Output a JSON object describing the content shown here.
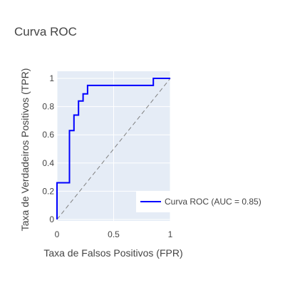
{
  "chart_data": {
    "type": "line",
    "title": "Curva ROC",
    "xlabel": "Taxa de Falsos Positivos (FPR)",
    "ylabel": "Taxa de Verdadeiros Positivos (TPR)",
    "xlim": [
      0,
      1
    ],
    "ylim": [
      0,
      1
    ],
    "xticks": [
      0,
      0.5,
      1
    ],
    "xtick_labels": [
      "0",
      "0.5",
      "1"
    ],
    "yticks": [
      0,
      0.2,
      0.4,
      0.6,
      0.8,
      1
    ],
    "ytick_labels": [
      "0",
      "0.2",
      "0.4",
      "0.6",
      "0.8",
      "1"
    ],
    "grid": true,
    "legend_position": "bottom-right",
    "series": [
      {
        "name": "Curva ROC (AUC = 0.85)",
        "line_shape": "step",
        "color": "#0000ff",
        "x": [
          0,
          0,
          0.11,
          0.11,
          0.15,
          0.15,
          0.19,
          0.19,
          0.23,
          0.23,
          0.27,
          0.27,
          0.85,
          0.85,
          1
        ],
        "y": [
          0,
          0.26,
          0.26,
          0.63,
          0.63,
          0.74,
          0.74,
          0.84,
          0.84,
          0.89,
          0.89,
          0.95,
          0.95,
          1,
          1
        ]
      },
      {
        "line_shape": "linear",
        "dash": "dash",
        "color": "#808080",
        "x": [
          0,
          1
        ],
        "y": [
          0,
          1
        ]
      }
    ]
  }
}
